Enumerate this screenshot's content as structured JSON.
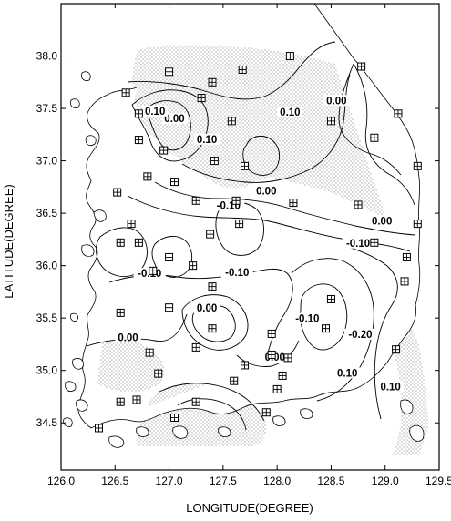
{
  "chart_data": {
    "type": "contour map",
    "xlabel": "LONGITUDE(DEGREE)",
    "ylabel": "LATITUDE(DEGREE)",
    "xlim": [
      126.0,
      129.5
    ],
    "ylim": [
      34.05,
      38.5
    ],
    "x_ticks": [
      "126.0",
      "126.5",
      "127.0",
      "127.5",
      "128.0",
      "128.5",
      "129.0",
      "129.5"
    ],
    "y_ticks": [
      "34.5",
      "35.0",
      "35.5",
      "36.0",
      "36.5",
      "37.0",
      "37.5",
      "38.0"
    ],
    "contour_labels": [
      {
        "text": "0.00",
        "x": 127.05,
        "y": 37.38
      },
      {
        "text": "0.10",
        "x": 126.87,
        "y": 37.45
      },
      {
        "text": "0.10",
        "x": 127.35,
        "y": 37.18
      },
      {
        "text": "0.10",
        "x": 128.12,
        "y": 37.44
      },
      {
        "text": "0.00",
        "x": 128.55,
        "y": 37.55
      },
      {
        "text": "0.00",
        "x": 127.9,
        "y": 36.69
      },
      {
        "text": "-0.10",
        "x": 127.55,
        "y": 36.55
      },
      {
        "text": "-0.10",
        "x": 127.63,
        "y": 35.91
      },
      {
        "text": "0.00",
        "x": 128.97,
        "y": 36.4
      },
      {
        "text": "-0.10",
        "x": 128.75,
        "y": 36.19
      },
      {
        "text": "-0.10",
        "x": 126.82,
        "y": 35.9
      },
      {
        "text": "0.00",
        "x": 127.35,
        "y": 35.57
      },
      {
        "text": "-0.10",
        "x": 128.28,
        "y": 35.47
      },
      {
        "text": "-0.20",
        "x": 128.77,
        "y": 35.32
      },
      {
        "text": "0.00",
        "x": 126.62,
        "y": 35.29
      },
      {
        "text": "0.00",
        "x": 127.98,
        "y": 35.1
      },
      {
        "text": "0.10",
        "x": 128.65,
        "y": 34.95
      },
      {
        "text": "0.10",
        "x": 129.05,
        "y": 34.82
      }
    ],
    "stations": [
      [
        127.0,
        37.85
      ],
      [
        127.68,
        37.87
      ],
      [
        128.12,
        38.0
      ],
      [
        128.78,
        37.9
      ],
      [
        126.6,
        37.65
      ],
      [
        127.4,
        37.75
      ],
      [
        126.72,
        37.45
      ],
      [
        127.3,
        37.6
      ],
      [
        127.58,
        37.38
      ],
      [
        128.5,
        37.38
      ],
      [
        128.9,
        37.22
      ],
      [
        129.12,
        37.45
      ],
      [
        126.72,
        37.2
      ],
      [
        126.95,
        37.1
      ],
      [
        127.42,
        37.0
      ],
      [
        127.7,
        36.95
      ],
      [
        129.3,
        36.95
      ],
      [
        126.8,
        36.85
      ],
      [
        127.05,
        36.8
      ],
      [
        126.52,
        36.7
      ],
      [
        127.25,
        36.62
      ],
      [
        127.62,
        36.62
      ],
      [
        128.15,
        36.6
      ],
      [
        128.75,
        36.58
      ],
      [
        126.65,
        36.4
      ],
      [
        127.65,
        36.4
      ],
      [
        129.3,
        36.4
      ],
      [
        127.38,
        36.3
      ],
      [
        126.55,
        36.22
      ],
      [
        126.72,
        36.22
      ],
      [
        128.9,
        36.22
      ],
      [
        127.0,
        36.08
      ],
      [
        127.22,
        36.0
      ],
      [
        126.85,
        35.95
      ],
      [
        129.2,
        36.08
      ],
      [
        129.18,
        35.85
      ],
      [
        127.4,
        35.8
      ],
      [
        127.0,
        35.6
      ],
      [
        126.55,
        35.55
      ],
      [
        127.4,
        35.4
      ],
      [
        127.95,
        35.35
      ],
      [
        128.45,
        35.4
      ],
      [
        128.5,
        35.68
      ],
      [
        126.82,
        35.17
      ],
      [
        127.25,
        35.22
      ],
      [
        127.95,
        35.15
      ],
      [
        128.1,
        35.12
      ],
      [
        127.7,
        35.05
      ],
      [
        128.05,
        34.95
      ],
      [
        129.1,
        35.2
      ],
      [
        128.0,
        34.82
      ],
      [
        127.6,
        34.9
      ],
      [
        126.9,
        34.97
      ],
      [
        126.7,
        34.72
      ],
      [
        127.25,
        34.7
      ],
      [
        126.55,
        34.7
      ],
      [
        127.05,
        34.55
      ],
      [
        127.9,
        34.6
      ],
      [
        126.35,
        34.45
      ]
    ],
    "shading": "stippled where value > 0.00"
  }
}
